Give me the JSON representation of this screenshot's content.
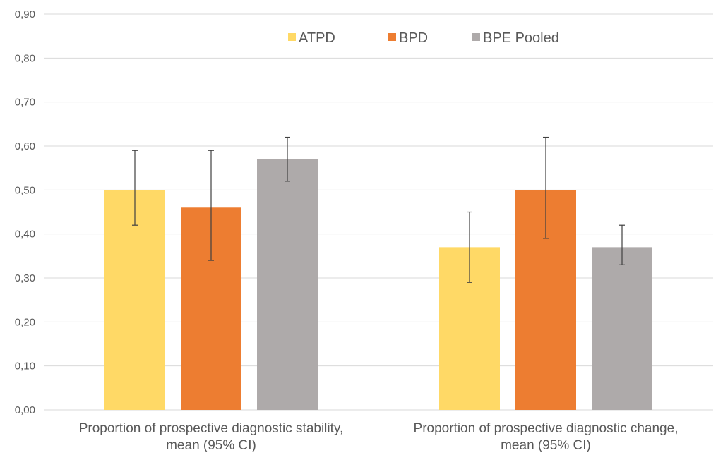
{
  "chart_data": {
    "type": "bar",
    "categories": [
      [
        "Proportion of prospective diagnostic stability,",
        "mean (95% CI)"
      ],
      [
        "Proportion of prospective diagnostic change,",
        "mean (95% CI)"
      ]
    ],
    "series": [
      {
        "name": "ATPD",
        "color": "#FFD966",
        "values": [
          0.5,
          0.37
        ],
        "ci_low": [
          0.42,
          0.29
        ],
        "ci_high": [
          0.59,
          0.45
        ]
      },
      {
        "name": "BPD",
        "color": "#ED7D31",
        "values": [
          0.46,
          0.5
        ],
        "ci_low": [
          0.34,
          0.39
        ],
        "ci_high": [
          0.59,
          0.62
        ]
      },
      {
        "name": "BPE Pooled",
        "color": "#AEAAAA",
        "values": [
          0.57,
          0.37
        ],
        "ci_low": [
          0.52,
          0.33
        ],
        "ci_high": [
          0.62,
          0.42
        ]
      }
    ],
    "yticks": [
      "0,00",
      "0,10",
      "0,20",
      "0,30",
      "0,40",
      "0,50",
      "0,60",
      "0,70",
      "0,80",
      "0,90"
    ],
    "ylim": [
      0,
      0.9
    ],
    "grid": true,
    "legend_position": "top",
    "gridline_color": "#D9D9D9",
    "errorbar_color": "#404040"
  }
}
